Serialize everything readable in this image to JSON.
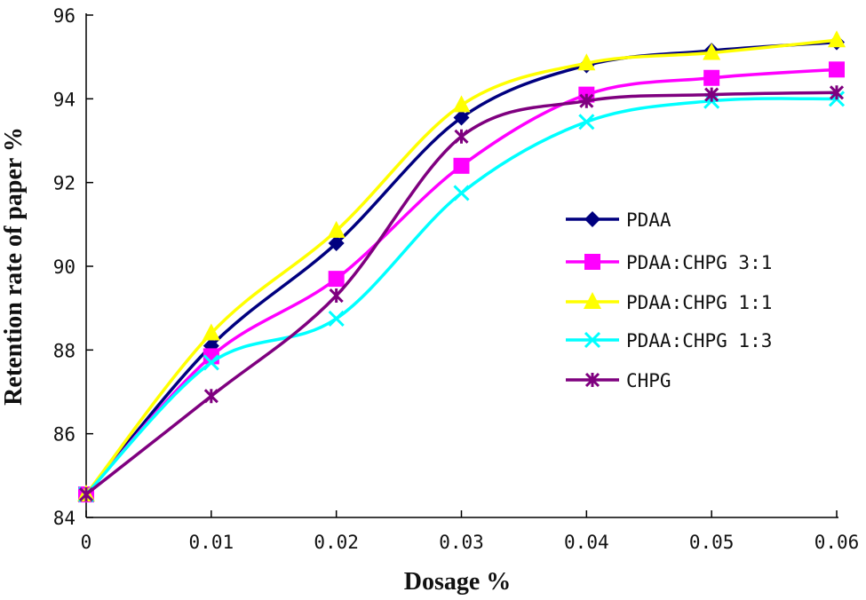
{
  "chart_data": {
    "type": "line",
    "xlabel": "Dosage %",
    "ylabel": "Retention rate of paper %",
    "x": [
      0,
      0.01,
      0.02,
      0.03,
      0.04,
      0.05,
      0.06
    ],
    "x_tick_labels": [
      "0",
      "0.01",
      "0.02",
      "0.03",
      "0.04",
      "0.05",
      "0.06"
    ],
    "y_tick_labels": [
      "84",
      "86",
      "88",
      "90",
      "92",
      "94",
      "96"
    ],
    "xlim": [
      0,
      0.06
    ],
    "ylim": [
      84,
      96
    ],
    "grid": false,
    "smoothed": true,
    "legend_position": "right",
    "series": [
      {
        "name": "PDAA",
        "color": "#00007f",
        "marker": "diamond",
        "values": [
          84.55,
          88.1,
          90.55,
          93.55,
          94.8,
          95.15,
          95.35
        ]
      },
      {
        "name": "PDAA:CHPG 3:1",
        "color": "#ff00ff",
        "marker": "square",
        "values": [
          84.55,
          87.85,
          89.7,
          92.4,
          94.1,
          94.5,
          94.7
        ]
      },
      {
        "name": "PDAA:CHPG 1:1",
        "color": "#ffff00",
        "marker": "triangle",
        "values": [
          84.55,
          88.4,
          90.85,
          93.85,
          94.85,
          95.1,
          95.4
        ]
      },
      {
        "name": "PDAA:CHPG 1:3",
        "color": "#00ffff",
        "marker": "x",
        "values": [
          84.55,
          87.7,
          88.75,
          91.75,
          93.45,
          93.95,
          94.0
        ]
      },
      {
        "name": "CHPG",
        "color": "#7f007f",
        "marker": "star",
        "values": [
          84.55,
          86.9,
          89.3,
          93.1,
          93.95,
          94.1,
          94.15
        ]
      }
    ]
  }
}
